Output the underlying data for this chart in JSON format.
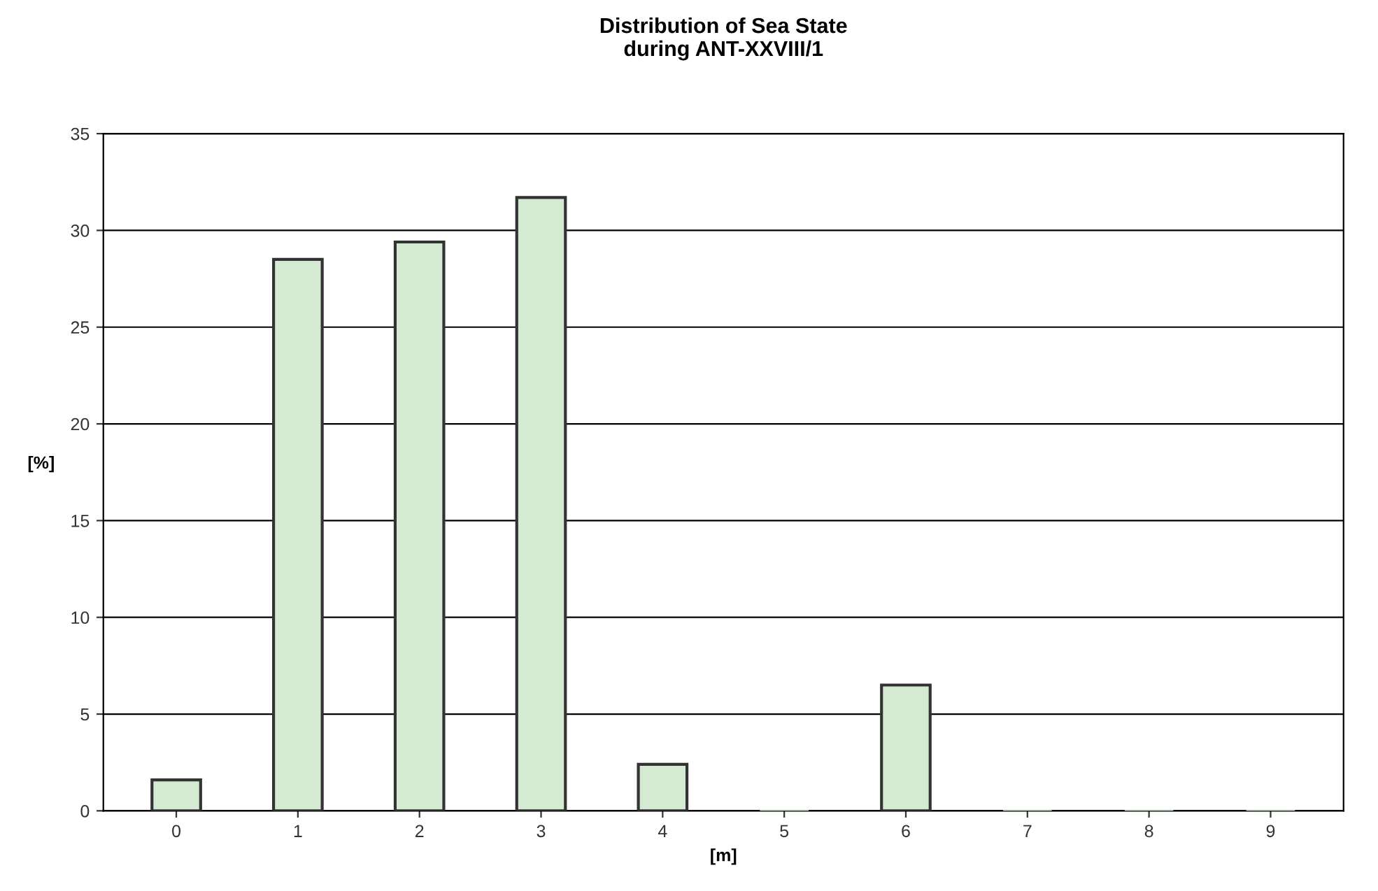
{
  "chart_data": {
    "type": "bar",
    "title": "Distribution of Sea State\nduring ANT-XXVIII/1",
    "xlabel": "[m]",
    "ylabel": "[%]",
    "categories": [
      "0",
      "1",
      "2",
      "3",
      "4",
      "5",
      "6",
      "7",
      "8",
      "9"
    ],
    "values": [
      1.6,
      28.5,
      29.4,
      31.7,
      2.4,
      0,
      6.5,
      0,
      0,
      0
    ],
    "color": "#d5ead2",
    "ylim": [
      0,
      35
    ],
    "yticks": [
      0,
      5,
      10,
      15,
      20,
      25,
      30,
      35
    ],
    "grid": "y"
  }
}
